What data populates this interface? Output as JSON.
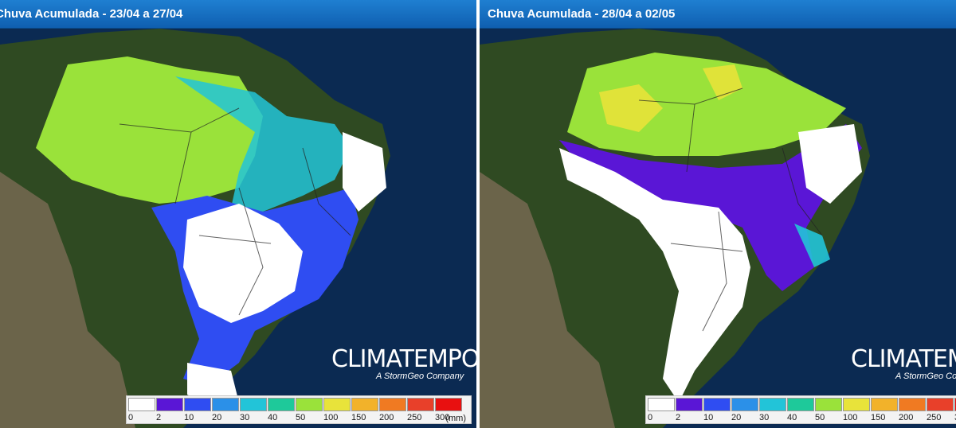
{
  "panels": [
    {
      "title": "Chuva Acumulada - 23/04 a 27/04",
      "logo": "CLIMATEMPO",
      "tagline": "A StormGeo Company",
      "unit": "(mm)"
    },
    {
      "title": "Chuva Acumulada - 28/04 a 02/05",
      "logo": "CLIMATEMPO",
      "tagline": "A StormGeo Company",
      "unit": ""
    }
  ],
  "legend": {
    "labels": [
      "0",
      "2",
      "10",
      "20",
      "30",
      "40",
      "50",
      "100",
      "150",
      "200",
      "250",
      "300"
    ],
    "colors": [
      "#ffffff",
      "#5a16d6",
      "#2f4df2",
      "#2b90e8",
      "#22c4d8",
      "#1ec99a",
      "#9ae23a",
      "#e8e33a",
      "#f2b22a",
      "#f07a22",
      "#e8402a",
      "#e81010"
    ]
  },
  "colors": {
    "ocean": "#0b2a52",
    "land": "#2f4a22",
    "andes": "#7a6a55",
    "title_bar": "#1565c0"
  }
}
